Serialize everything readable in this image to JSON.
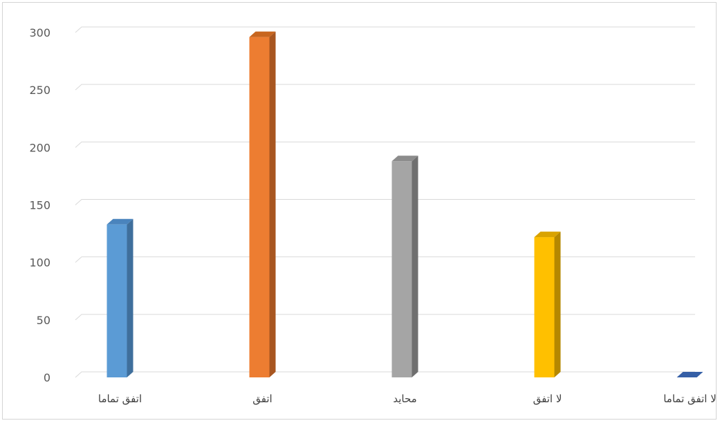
{
  "chart_data": {
    "type": "bar",
    "style": "3d-column",
    "categories": [
      "اتفق تماما",
      "اتفق",
      "محايد",
      "لا اتفق",
      "لا اتفق تماما"
    ],
    "values": [
      133,
      296,
      188,
      122,
      0
    ],
    "colors": [
      "#5b9bd5",
      "#ed7d31",
      "#a5a5a5",
      "#ffc000",
      "#4472c4"
    ],
    "side_colors": [
      "#3f6f9c",
      "#a85620",
      "#6f6f6f",
      "#b58800",
      "#2d4f8f"
    ],
    "top_colors": [
      "#4a84bd",
      "#c8661f",
      "#8c8c8c",
      "#d9a300",
      "#355fa6"
    ],
    "ylim": [
      0,
      300
    ],
    "yticks": [
      0,
      50,
      100,
      150,
      200,
      250,
      300
    ],
    "grid": true,
    "legend": "none",
    "title": "",
    "xlabel": "",
    "ylabel": ""
  }
}
